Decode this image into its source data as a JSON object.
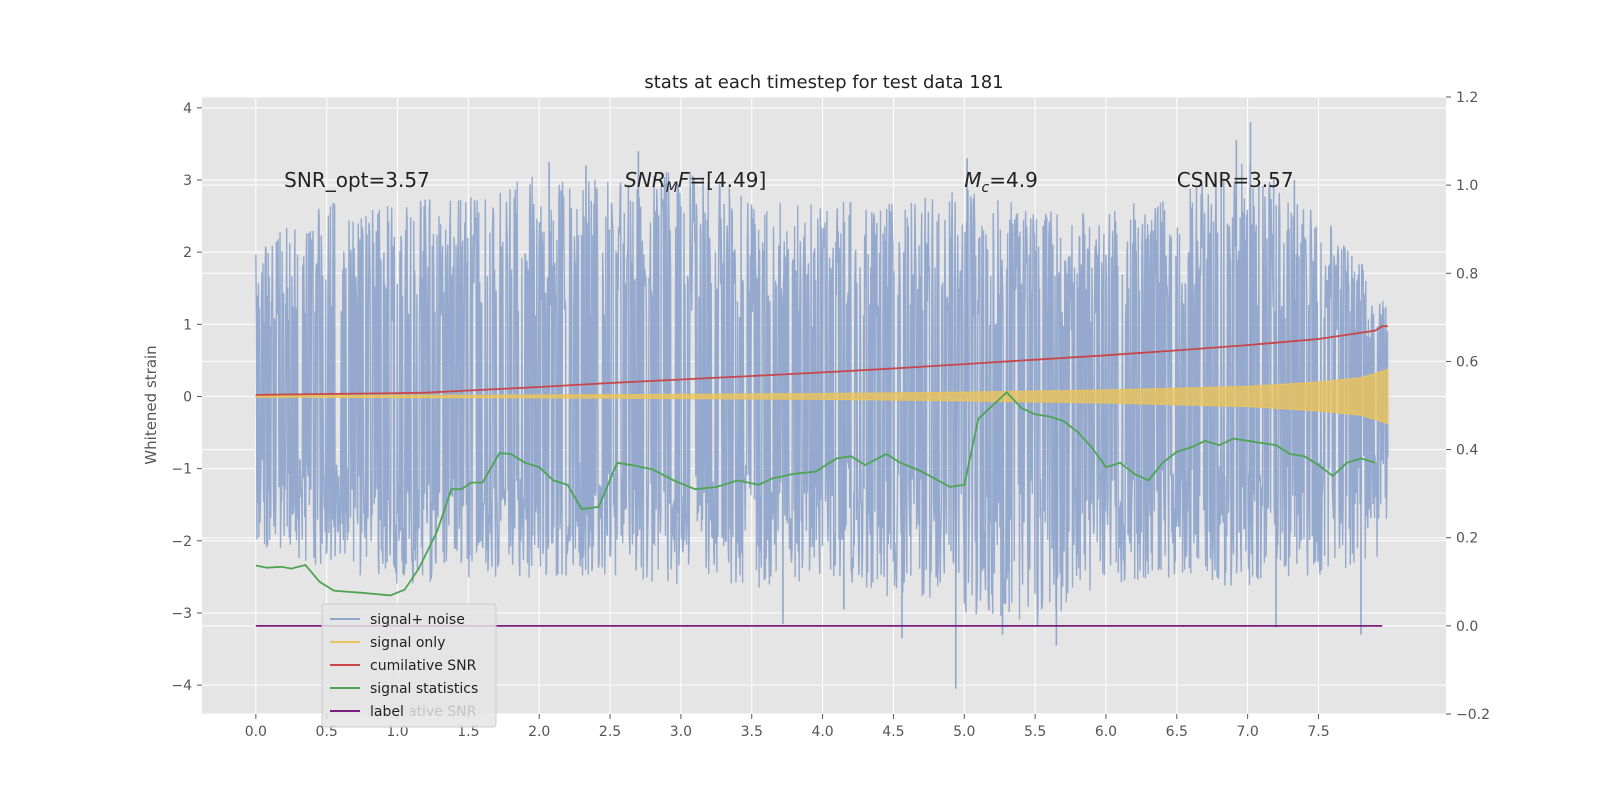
{
  "chart_data": {
    "type": "line",
    "title": "stats at each timestep for test data 181",
    "xlabel": "",
    "ylabel": "Whitened strain",
    "y2label": "",
    "xlim": [
      -0.38,
      8.4
    ],
    "ylim": [
      -4.4,
      4.15
    ],
    "y2lim": [
      -0.2,
      1.2
    ],
    "xticks": [
      0.0,
      0.5,
      1.0,
      1.5,
      2.0,
      2.5,
      3.0,
      3.5,
      4.0,
      4.5,
      5.0,
      5.5,
      6.0,
      6.5,
      7.0,
      7.5
    ],
    "xtick_labels": [
      "0.0",
      "0.5",
      "1.0",
      "1.5",
      "2.0",
      "2.5",
      "3.0",
      "3.5",
      "4.0",
      "4.5",
      "5.0",
      "5.5",
      "6.0",
      "6.5",
      "7.0",
      "7.5"
    ],
    "yticks": [
      4,
      3,
      2,
      1,
      0,
      -1,
      -2,
      -3,
      -4
    ],
    "ytick_labels": [
      "4",
      "3",
      "2",
      "1",
      "0",
      "−1",
      "−2",
      "−3",
      "−4"
    ],
    "y2ticks": [
      1.2,
      1.0,
      0.8,
      0.6,
      0.4,
      0.2,
      0.0,
      -0.2
    ],
    "y2tick_labels": [
      "1.2",
      "1.0",
      "0.8",
      "0.6",
      "0.4",
      "0.2",
      "0.0",
      "−0.2"
    ],
    "grid": true,
    "legend_position": "lower-left",
    "annotations": [
      {
        "text": "SNR_opt=3.57",
        "x": 0.2,
        "y": 3.0
      },
      {
        "text": "SNR",
        "sub": "M",
        "tail": "F=[4.49]",
        "italic": true,
        "x": 2.6,
        "y": 3.0
      },
      {
        "text": "M",
        "sub": "c",
        "tail": "=4.9",
        "italic": true,
        "x": 5.0,
        "y": 3.0
      },
      {
        "text": "CSNR=3.57",
        "x": 6.5,
        "y": 3.0
      }
    ],
    "legend": [
      {
        "name": "signal+ noise",
        "color": "#8fa5cb"
      },
      {
        "name": "signal only",
        "color": "#ecc45a"
      },
      {
        "name": "cumilative SNR",
        "color": "#c9464a"
      },
      {
        "name": "signal statistics",
        "color": "#4ea454"
      },
      {
        "name": "label",
        "color": "#7b1f7e"
      }
    ],
    "legend_ghost_text": "cumilative SNR",
    "series": [
      {
        "name": "signal+ noise",
        "axis": "left",
        "color": "#8fa5cb",
        "style": "dense-noise",
        "x_range": [
          0.0,
          7.99
        ],
        "envelope": [
          [
            0.0,
            -2.1,
            2.1
          ],
          [
            0.5,
            -2.4,
            2.7
          ],
          [
            1.0,
            -2.6,
            2.7
          ],
          [
            1.5,
            -2.6,
            2.8
          ],
          [
            2.0,
            -2.5,
            3.1
          ],
          [
            2.5,
            -2.6,
            3.0
          ],
          [
            3.0,
            -2.6,
            3.2
          ],
          [
            3.5,
            -2.7,
            2.8
          ],
          [
            4.0,
            -2.5,
            2.7
          ],
          [
            4.5,
            -2.8,
            2.7
          ],
          [
            5.0,
            -3.0,
            2.9
          ],
          [
            5.5,
            -3.2,
            2.6
          ],
          [
            6.0,
            -2.6,
            2.6
          ],
          [
            6.5,
            -2.6,
            2.8
          ],
          [
            7.0,
            -2.7,
            3.3
          ],
          [
            7.5,
            -2.5,
            2.6
          ],
          [
            7.99,
            -2.2,
            1.4
          ]
        ],
        "spikes": [
          [
            2.7,
            3.4
          ],
          [
            2.07,
            3.25
          ],
          [
            2.33,
            3.2
          ],
          [
            5.02,
            3.3
          ],
          [
            7.02,
            3.8
          ],
          [
            6.92,
            3.55
          ],
          [
            7.33,
            3.0
          ],
          [
            4.94,
            -4.05
          ],
          [
            5.65,
            -3.45
          ],
          [
            4.56,
            -3.35
          ],
          [
            5.27,
            -3.3
          ],
          [
            7.8,
            -3.3
          ],
          [
            3.72,
            -3.15
          ],
          [
            7.2,
            -3.2
          ],
          [
            4.15,
            -2.95
          ]
        ]
      },
      {
        "name": "signal only",
        "axis": "left",
        "color": "#ecc45a",
        "style": "chirp",
        "envelope": [
          [
            0.0,
            0.01
          ],
          [
            2.0,
            0.02
          ],
          [
            4.0,
            0.04
          ],
          [
            5.0,
            0.06
          ],
          [
            6.0,
            0.09
          ],
          [
            7.0,
            0.14
          ],
          [
            7.5,
            0.2
          ],
          [
            7.8,
            0.26
          ],
          [
            7.95,
            0.35
          ],
          [
            7.99,
            0.38
          ]
        ]
      },
      {
        "name": "cumilative SNR",
        "axis": "right",
        "color": "#c9464a",
        "x": [
          0.0,
          0.5,
          1.0,
          1.2,
          1.5,
          2.0,
          2.5,
          3.0,
          3.5,
          4.0,
          4.5,
          5.0,
          5.5,
          6.0,
          6.5,
          7.0,
          7.5,
          7.9,
          7.95,
          7.99
        ],
        "y": [
          0.524,
          0.526,
          0.528,
          0.529,
          0.534,
          0.542,
          0.551,
          0.559,
          0.567,
          0.575,
          0.584,
          0.594,
          0.604,
          0.614,
          0.625,
          0.637,
          0.651,
          0.67,
          0.68,
          0.68
        ]
      },
      {
        "name": "signal statistics",
        "axis": "right",
        "color": "#4ea454",
        "x": [
          0.0,
          0.08,
          0.18,
          0.25,
          0.35,
          0.45,
          0.55,
          0.62,
          0.75,
          0.95,
          1.05,
          1.15,
          1.28,
          1.38,
          1.45,
          1.52,
          1.6,
          1.72,
          1.8,
          1.9,
          2.0,
          2.1,
          2.2,
          2.3,
          2.42,
          2.55,
          2.65,
          2.8,
          2.95,
          3.1,
          3.25,
          3.4,
          3.55,
          3.65,
          3.8,
          3.95,
          4.1,
          4.2,
          4.3,
          4.45,
          4.55,
          4.7,
          4.9,
          5.0,
          5.1,
          5.2,
          5.3,
          5.4,
          5.5,
          5.6,
          5.7,
          5.8,
          5.9,
          6.0,
          6.1,
          6.2,
          6.3,
          6.4,
          6.5,
          6.6,
          6.7,
          6.8,
          6.9,
          7.0,
          7.1,
          7.2,
          7.3,
          7.4,
          7.5,
          7.6,
          7.7,
          7.8,
          7.9
        ],
        "y": [
          0.137,
          0.132,
          0.134,
          0.13,
          0.138,
          0.1,
          0.08,
          0.078,
          0.075,
          0.069,
          0.082,
          0.13,
          0.215,
          0.31,
          0.31,
          0.325,
          0.325,
          0.392,
          0.39,
          0.37,
          0.36,
          0.33,
          0.32,
          0.265,
          0.27,
          0.37,
          0.365,
          0.355,
          0.33,
          0.31,
          0.315,
          0.33,
          0.32,
          0.335,
          0.345,
          0.35,
          0.38,
          0.385,
          0.365,
          0.39,
          0.37,
          0.35,
          0.315,
          0.32,
          0.47,
          0.5,
          0.53,
          0.495,
          0.48,
          0.475,
          0.465,
          0.44,
          0.405,
          0.36,
          0.37,
          0.345,
          0.33,
          0.37,
          0.395,
          0.405,
          0.42,
          0.41,
          0.425,
          0.42,
          0.415,
          0.41,
          0.39,
          0.385,
          0.365,
          0.34,
          0.37,
          0.38,
          0.37
        ]
      },
      {
        "name": "label",
        "axis": "right",
        "color": "#7b1f7e",
        "x": [
          0.0,
          7.95
        ],
        "y": [
          0.0,
          0.0
        ]
      }
    ]
  }
}
